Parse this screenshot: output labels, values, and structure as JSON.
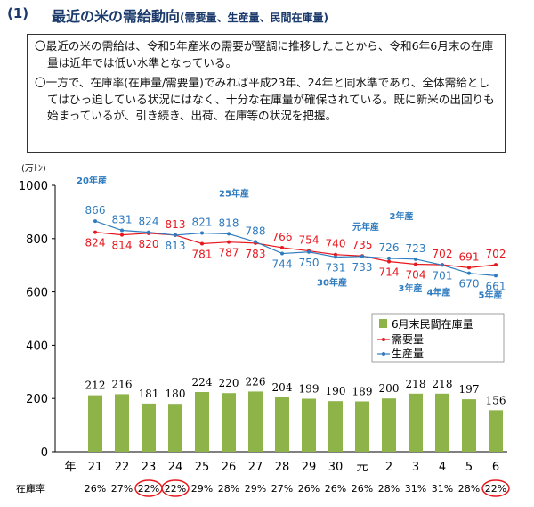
{
  "header": {
    "number": "(1)",
    "title": "最近の米の需給動向",
    "subtitle": "(需要量、生産量、民間在庫量)"
  },
  "summary": {
    "point1": "〇最近の米の需給は、令和5年産米の需要が堅調に推移したことから、令和6年6月末の在庫量は近年では低い水準となっている。",
    "point2": "〇一方で、在庫率(在庫量/需要量)でみれば平成23年、24年と同水準であり、全体需給としてはひっ迫している状況にはなく、十分な在庫量が確保されている。既に新米の出回りも始まっているが、引き続き、出荷、在庫等の状況を把握。"
  },
  "chart_data": {
    "type": "bar+line",
    "unit_label": "(万ﾄﾝ)",
    "ylim": [
      0,
      1000
    ],
    "yticks": [
      0,
      200,
      400,
      600,
      800,
      1000
    ],
    "x_axis_label": "年",
    "categories": [
      "21",
      "22",
      "23",
      "24",
      "25",
      "26",
      "27",
      "28",
      "29",
      "30",
      "元",
      "2",
      "3",
      "4",
      "5",
      "6"
    ],
    "series": [
      {
        "name": "6月末民間在庫量",
        "kind": "bar",
        "color": "#8db349",
        "values": [
          212,
          216,
          181,
          180,
          224,
          220,
          226,
          204,
          199,
          190,
          189,
          200,
          218,
          218,
          197,
          156
        ]
      },
      {
        "name": "需要量",
        "kind": "line",
        "color": "#e8171e",
        "values": [
          824,
          814,
          820,
          813,
          781,
          787,
          783,
          766,
          754,
          740,
          735,
          714,
          704,
          702,
          691,
          702
        ]
      },
      {
        "name": "生産量",
        "kind": "line",
        "color": "#2e7bbf",
        "values": [
          866,
          831,
          824,
          813,
          821,
          818,
          788,
          744,
          750,
          731,
          733,
          726,
          723,
          701,
          670,
          661
        ]
      }
    ],
    "annotations": [
      {
        "text": "20年産",
        "index": 0
      },
      {
        "text": "25年産",
        "index": 5
      },
      {
        "text": "30年産",
        "index": 9
      },
      {
        "text": "元年産",
        "index": 10
      },
      {
        "text": "2年産",
        "index": 11
      },
      {
        "text": "3年産",
        "index": 12
      },
      {
        "text": "4年産",
        "index": 13
      },
      {
        "text": "5年産",
        "index": 14
      }
    ],
    "ratio_label": "在庫率",
    "ratios": [
      "26%",
      "27%",
      "22%",
      "22%",
      "29%",
      "28%",
      "29%",
      "27%",
      "26%",
      "26%",
      "26%",
      "28%",
      "31%",
      "31%",
      "28%",
      "22%"
    ],
    "ratio_highlight": [
      2,
      3,
      15
    ],
    "grid": false,
    "legend_position": "right"
  }
}
